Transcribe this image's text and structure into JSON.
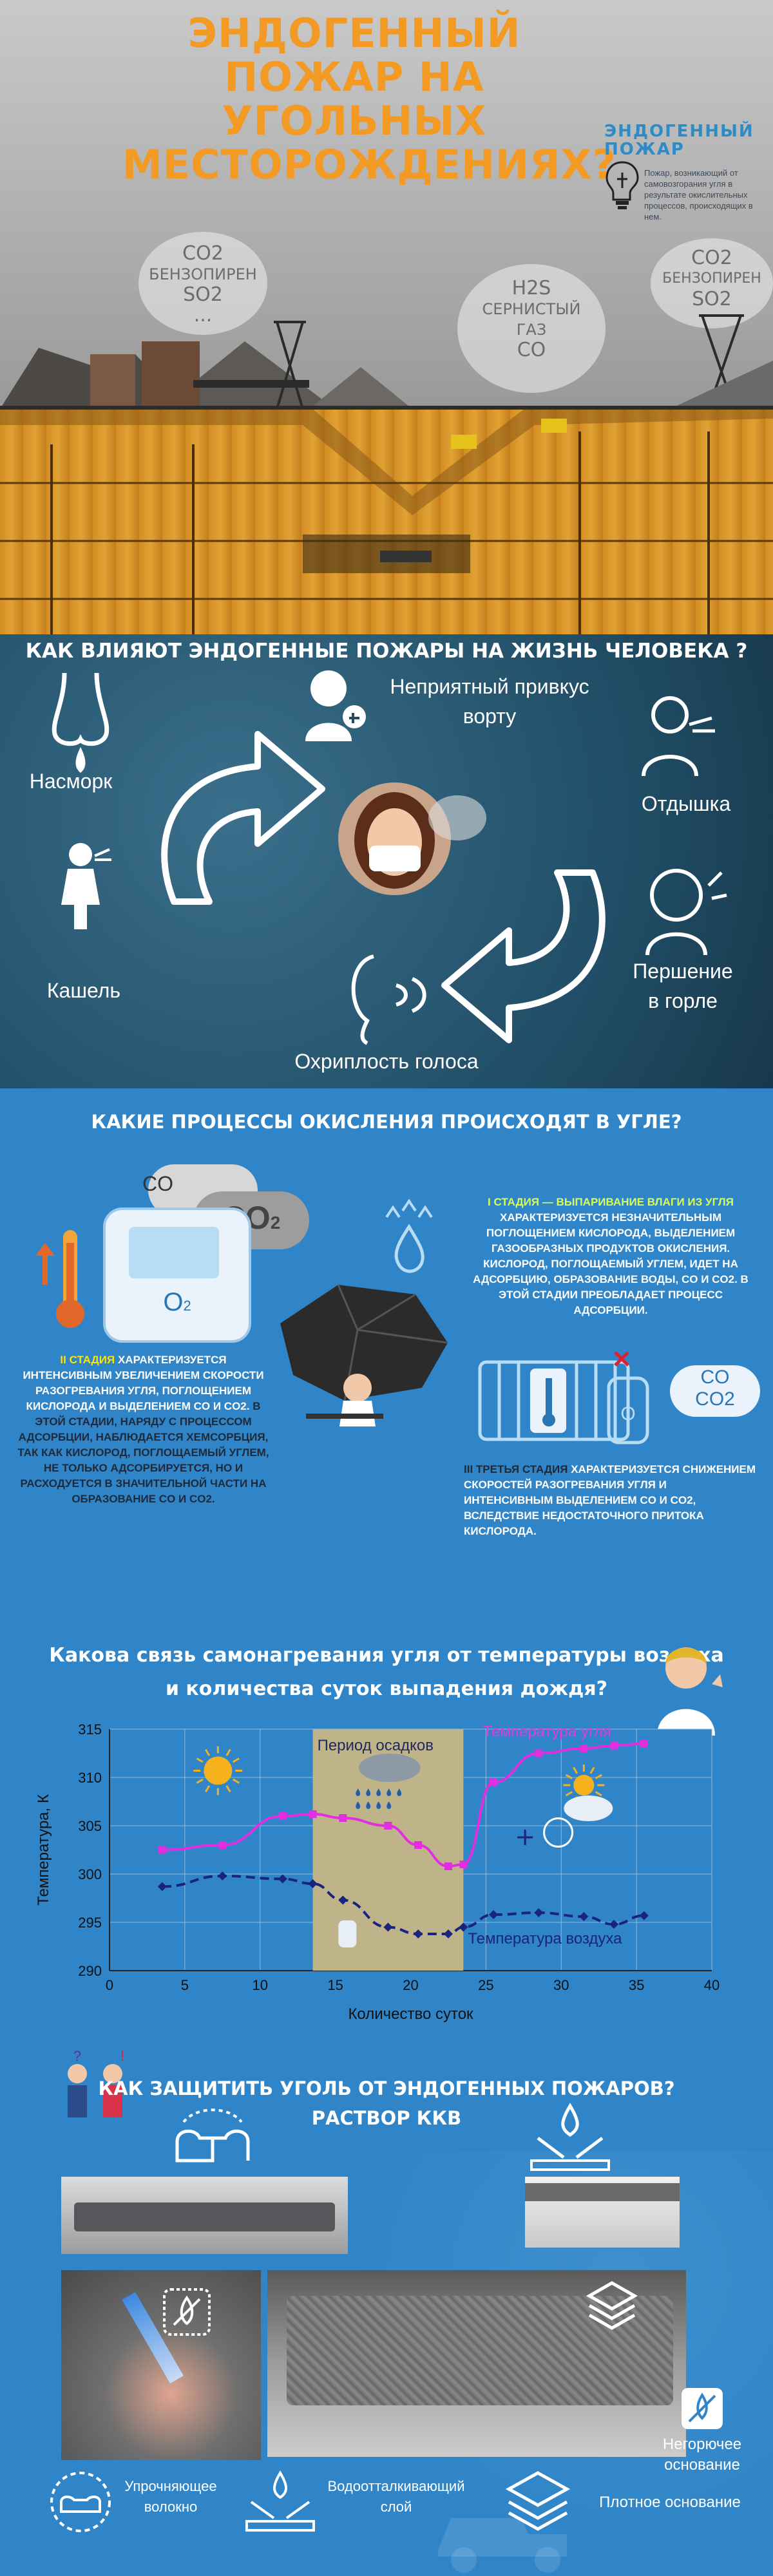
{
  "header": {
    "title_lines": [
      "ЭНДОГЕННЫЙ ПОЖАР НА",
      "УГОЛЬНЫХ",
      "МЕСТОРОЖДЕНИЯХ?"
    ],
    "definition_title_lines": [
      "ЭНДОГЕННЫЙ",
      "ПОЖАР"
    ],
    "definition_text": "Пожар, возникающий от самовозгорания угля в результате окислительных процессов, происходящих в нем.",
    "cloud_left": [
      "CO2",
      "БЕНЗОПИРЕН",
      "SO2",
      "..."
    ],
    "cloud_mid": [
      "H2S",
      "СЕРНИСТЫЙ",
      "ГАЗ",
      "CO"
    ],
    "cloud_right": [
      "CO2",
      "БЕНЗОПИРЕН",
      "SO2"
    ]
  },
  "effects": {
    "title": "КАК ВЛИЯЮТ ЭНДОГЕННЫЕ ПОЖАРЫ НА ЖИЗНЬ ЧЕЛОВЕКА ?",
    "taste": "Неприятный привкус",
    "taste2": "ворту",
    "runny_nose": "Насморк",
    "shortness": "Отдышка",
    "cough": "Кашель",
    "throat1": "Першение",
    "throat2": "в горле",
    "hoarseness": "Охриплость голоса"
  },
  "oxidation": {
    "title": "КАКИЕ ПРОЦЕССЫ ОКИСЛЕНИЯ ПРОИСХОДЯТ В УГЛЕ?",
    "co": "CO",
    "co2": "CO",
    "co2_sub": "2",
    "o2": "O",
    "o2_sub": "2",
    "stage1_head": "I СТАДИЯ — ВЫПАРИВАНИЕ ВЛАГИ ИЗ УГЛЯ",
    "stage1_text": "ХАРАКТЕРИЗУЕТСЯ НЕЗНАЧИТЕЛЬНЫМ ПОГЛОЩЕНИЕМ КИСЛОРОДА, ВЫДЕЛЕНИЕМ ГАЗООБРАЗНЫХ ПРОДУКТОВ ОКИСЛЕНИЯ. КИСЛОРОД, ПОГЛОЩАЕМЫЙ УГЛЕМ, ИДЕТ НА АДСОРБЦИЮ, ОБРАЗОВАНИЕ ВОДЫ, CO И CO2. В ЭТОЙ СТАДИИ ПРЕОБЛАДАЕТ ПРОЦЕСС АДСОРБЦИИ.",
    "stage2_head": "II СТАДИЯ",
    "stage2_text": "ХАРАКТЕРИЗУЕТСЯ ИНТЕНСИВНЫМ УВЕЛИЧЕНИЕМ СКОРОСТИ РАЗОГРЕВАНИЯ УГЛЯ, ПОГЛОЩЕНИЕМ КИСЛОРОДА И ВЫДЕЛЕНИЕМ CO И CO2.",
    "stage2_text2": "В ЭТОЙ СТАДИИ, НАРЯДУ С ПРОЦЕССОМ АДСОРБЦИИ, НАБЛЮДАЕТСЯ ХЕМСОРБЦИЯ, ТАК КАК КИСЛОРОД, ПОГЛОЩАЕМЫЙ УГЛЕМ, НЕ ТОЛЬКО АДСОРБИРУЕТСЯ, НО И РАСХОДУЕТСЯ В ЗНАЧИТЕЛЬНОЙ ЧАСТИ НА ОБРАЗОВАНИЕ CO И CO2.",
    "stage3_head": "III ТРЕТЬЯ СТАДИЯ",
    "stage3_text": "ХАРАКТЕРИЗУЕТСЯ СНИЖЕНИЕМ СКОРОСТЕЙ РАЗОГРЕВАНИЯ УГЛЯ И ИНТЕНСИВНЫМ ВЫДЕЛЕНИЕМ CO И CO2, ВСЛЕДСТВИЕ НЕДОСТАТОЧНОГО ПРИТОКА КИСЛОРОДА.",
    "right_co": "CO",
    "right_co2": "CO2"
  },
  "chart_question": [
    "Какова связь самонагревания угля  от температуры воздуха",
    "и количества суток выпадения дождя?"
  ],
  "chart_data": {
    "type": "line",
    "ylabel": "Температура, К",
    "xlabel": "Количество суток",
    "xlim": [
      0,
      40
    ],
    "ylim": [
      290,
      315
    ],
    "xticks": [
      0,
      5,
      10,
      15,
      20,
      25,
      30,
      35,
      40
    ],
    "yticks": [
      290,
      295,
      300,
      305,
      310,
      315
    ],
    "grid": true,
    "rain_band": [
      13.5,
      23.5
    ],
    "rain_label": "Период осадков",
    "colors": {
      "coal": "#e02ee0",
      "air": "#1a237e",
      "band": "#bfb38a"
    },
    "series": [
      {
        "name": "Температура угля",
        "x": [
          3.5,
          7.5,
          11.5,
          13.5,
          15.5,
          18.5,
          20.5,
          22.5,
          23.5,
          25.5,
          28.5,
          31.5,
          33.5,
          35.5
        ],
        "y": [
          302.5,
          303,
          306,
          306.2,
          305.8,
          305,
          303,
          300.8,
          301,
          309.5,
          312.5,
          313,
          313.3,
          313.5
        ]
      },
      {
        "name": "Температура воздуха",
        "x": [
          3.5,
          7.5,
          11.5,
          13.5,
          15.5,
          18.5,
          20.5,
          22.5,
          23.5,
          25.5,
          28.5,
          31.5,
          33.5,
          35.5
        ],
        "y": [
          298.7,
          299.8,
          299.5,
          299,
          297.3,
          294.5,
          293.8,
          293.8,
          294.5,
          295.8,
          296,
          295.6,
          294.8,
          295.7
        ]
      }
    ]
  },
  "protection": {
    "title1": "КАК ЗАЩИТИТЬ УГОЛЬ ОТ ЭНДОГЕННЫХ ПОЖАРОВ?",
    "title2": "РАСТВОР ККВ",
    "base1": "Негорючее",
    "base2": "основание",
    "strong1": "Упрочняющее",
    "strong2": "волокно",
    "water1": "Водоотталкивающий",
    "water2": "слой",
    "dense": "Плотное основание"
  }
}
